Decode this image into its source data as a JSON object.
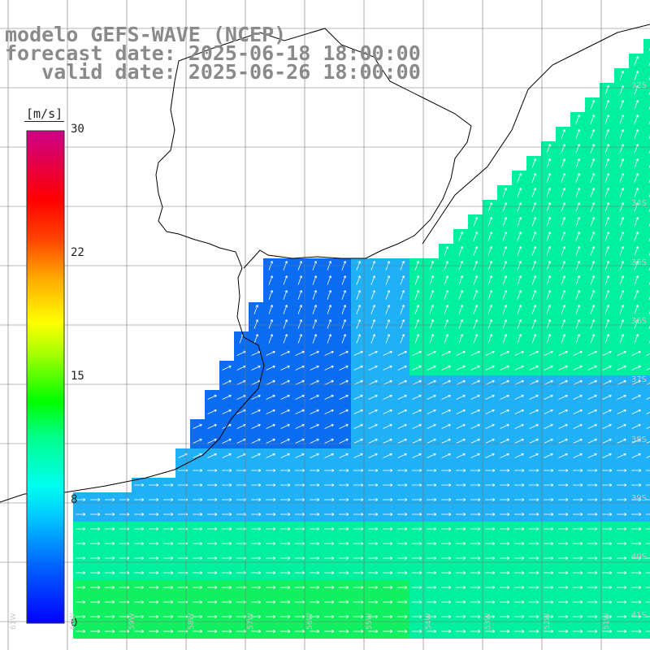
{
  "header": {
    "line1": "modelo GEFS-WAVE (NCEP)",
    "line2": "forecast date: 2025-06-18 18:00:00",
    "line3": "   valid date: 2025-06-26 18:00:00"
  },
  "colorbar": {
    "units": "[m/s]",
    "ticks": [
      {
        "label": "30"
      },
      {
        "label": "22"
      },
      {
        "label": "15"
      },
      {
        "label": "8"
      },
      {
        "label": "0"
      }
    ],
    "colors": [
      "#0000ff",
      "#0066ff",
      "#00ccff",
      "#00ffcc",
      "#00ff00",
      "#88ff00",
      "#ffff00",
      "#ff8800",
      "#ff0000",
      "#ff0066",
      "#cc0088"
    ]
  },
  "map": {
    "lat_labels": [
      "32S",
      "34S",
      "35S",
      "36S",
      "37S",
      "38S",
      "39S",
      "40S",
      "41S"
    ],
    "lon_labels": [
      "61W",
      "60W",
      "59W",
      "58W",
      "57W",
      "56W",
      "55W",
      "54W",
      "53W",
      "52W",
      "51W"
    ],
    "ocean_colors": {
      "weak": "#0a6cf0",
      "mid": "#1fb0f5",
      "strong": "#00f0a0",
      "peak": "#10f060"
    },
    "vector_color": "#ffffff"
  }
}
